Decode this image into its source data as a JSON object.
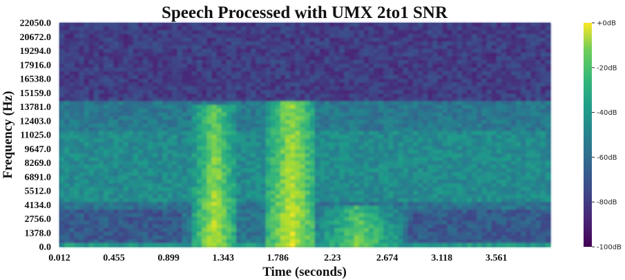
{
  "chart_data": {
    "type": "heatmap",
    "title": "Speech Processed with UMX 2to1 SNR",
    "xlabel": "Time (seconds)",
    "ylabel": "Frequency (Hz)",
    "xticks": [
      "0.012",
      "0.455",
      "0.899",
      "1.343",
      "1.786",
      "2.23",
      "2.674",
      "3.118",
      "3.561"
    ],
    "yticks": [
      "22050.0",
      "20672.0",
      "19294.0",
      "17916.0",
      "16538.0",
      "15159.0",
      "13781.0",
      "12403.0",
      "11025.0",
      "9647.0",
      "8269.0",
      "6891.0",
      "5512.0",
      "4134.0",
      "2756.0",
      "1378.0",
      "0.0"
    ],
    "colorbar": {
      "labels": [
        "+0dB",
        "-20dB",
        "-40dB",
        "-60dB",
        "-80dB",
        "-100dB"
      ],
      "colormap": "viridis",
      "range": [
        -100,
        0
      ]
    },
    "xlim": [
      0.012,
      4.0
    ],
    "ylim": [
      0,
      22050
    ],
    "speech_segments": [
      {
        "t_start": 1.1,
        "t_end": 1.45,
        "f_max": 14000,
        "level_db": -10
      },
      {
        "t_start": 1.7,
        "t_end": 2.1,
        "f_max": 14500,
        "level_db": -5
      },
      {
        "t_start": 2.1,
        "t_end": 2.8,
        "f_max": 4000,
        "level_db": -20
      }
    ]
  }
}
